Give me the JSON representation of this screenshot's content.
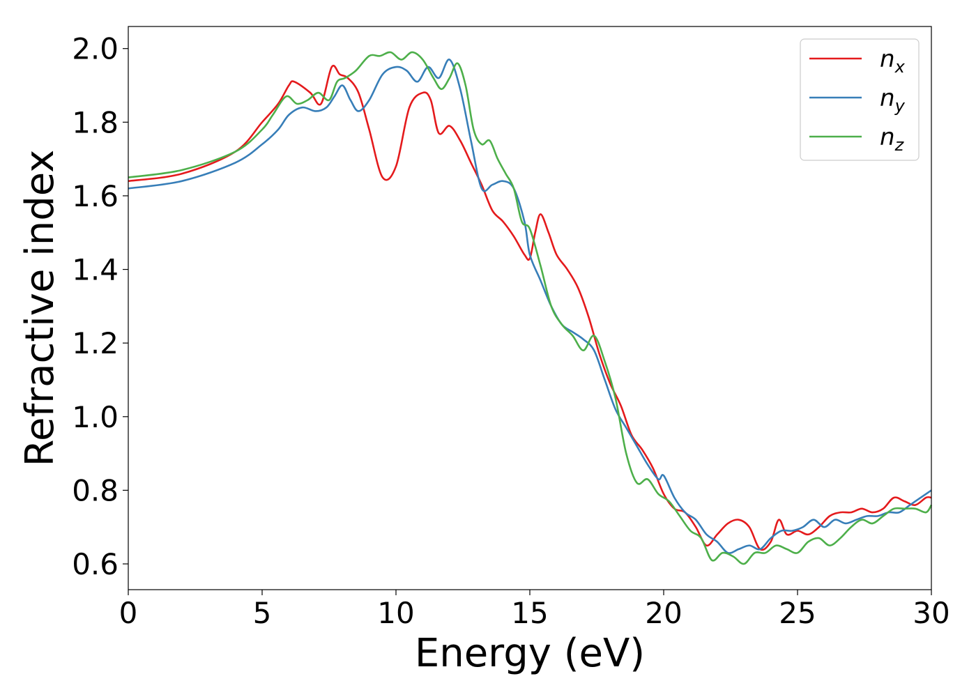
{
  "chart_data": {
    "type": "line",
    "title": "",
    "xlabel": "Energy (eV)",
    "ylabel": "Refractive index",
    "xlim": [
      0,
      30
    ],
    "ylim": [
      0.53,
      2.06
    ],
    "xticks": [
      0,
      5,
      10,
      15,
      20,
      25,
      30
    ],
    "yticks": [
      0.6,
      0.8,
      1.0,
      1.2,
      1.4,
      1.6,
      1.8,
      2.0
    ],
    "xtick_labels": [
      "0",
      "5",
      "10",
      "15",
      "20",
      "25",
      "30"
    ],
    "ytick_labels": [
      "0.6",
      "0.8",
      "1.0",
      "1.2",
      "1.4",
      "1.6",
      "1.8",
      "2.0"
    ],
    "grid": false,
    "legend_position": "top-right",
    "series": [
      {
        "name": "n_x",
        "base": "n",
        "sub": "x",
        "color": "#e41a1c",
        "x": [
          0,
          2,
          4,
          5,
          5.6,
          6,
          6.2,
          6.8,
          7.2,
          7.6,
          7.9,
          8.2,
          8.6,
          9,
          9.5,
          10,
          10.5,
          11,
          11.3,
          11.6,
          12,
          12.4,
          12.8,
          13.2,
          13.6,
          14,
          14.4,
          14.8,
          15,
          15.2,
          15.4,
          15.7,
          16,
          16.4,
          16.8,
          17.2,
          17.6,
          18,
          18.4,
          18.8,
          19.2,
          19.6,
          20,
          20.4,
          20.8,
          21.2,
          21.6,
          22,
          22.4,
          22.8,
          23.2,
          23.6,
          24,
          24.3,
          24.6,
          25,
          25.4,
          25.8,
          26.2,
          26.6,
          27,
          27.4,
          27.8,
          28.2,
          28.6,
          29,
          29.4,
          29.8,
          30
        ],
        "y": [
          1.64,
          1.66,
          1.72,
          1.8,
          1.85,
          1.9,
          1.91,
          1.88,
          1.85,
          1.95,
          1.93,
          1.92,
          1.88,
          1.78,
          1.65,
          1.68,
          1.84,
          1.88,
          1.86,
          1.77,
          1.79,
          1.75,
          1.69,
          1.63,
          1.56,
          1.53,
          1.49,
          1.44,
          1.43,
          1.5,
          1.55,
          1.5,
          1.44,
          1.4,
          1.35,
          1.27,
          1.17,
          1.09,
          1.03,
          0.95,
          0.91,
          0.86,
          0.79,
          0.75,
          0.74,
          0.7,
          0.65,
          0.68,
          0.71,
          0.72,
          0.7,
          0.64,
          0.66,
          0.72,
          0.68,
          0.69,
          0.68,
          0.7,
          0.73,
          0.74,
          0.74,
          0.75,
          0.74,
          0.75,
          0.78,
          0.77,
          0.76,
          0.78,
          0.78
        ]
      },
      {
        "name": "n_y",
        "base": "n",
        "sub": "y",
        "color": "#377eb8",
        "x": [
          0,
          2,
          4,
          5,
          5.6,
          6,
          6.5,
          7,
          7.4,
          7.7,
          8,
          8.3,
          8.6,
          9,
          9.5,
          10,
          10.4,
          10.8,
          11.2,
          11.6,
          12,
          12.4,
          12.8,
          13.2,
          13.6,
          14,
          14.4,
          14.8,
          15,
          15.4,
          15.8,
          16.2,
          16.6,
          17,
          17.4,
          17.8,
          18.2,
          18.6,
          19,
          19.4,
          19.8,
          20,
          20.4,
          20.8,
          21.2,
          21.6,
          22,
          22.4,
          22.8,
          23.2,
          23.6,
          24,
          24.4,
          24.8,
          25.2,
          25.6,
          26,
          26.4,
          26.8,
          27.2,
          27.6,
          28,
          28.4,
          28.8,
          29.2,
          29.6,
          30
        ],
        "y": [
          1.62,
          1.64,
          1.69,
          1.74,
          1.78,
          1.82,
          1.84,
          1.83,
          1.84,
          1.87,
          1.9,
          1.86,
          1.83,
          1.86,
          1.93,
          1.95,
          1.94,
          1.91,
          1.95,
          1.92,
          1.97,
          1.89,
          1.75,
          1.62,
          1.63,
          1.64,
          1.62,
          1.53,
          1.44,
          1.37,
          1.3,
          1.25,
          1.23,
          1.21,
          1.18,
          1.1,
          1.02,
          0.97,
          0.92,
          0.87,
          0.83,
          0.84,
          0.78,
          0.74,
          0.72,
          0.68,
          0.66,
          0.63,
          0.64,
          0.65,
          0.64,
          0.67,
          0.69,
          0.69,
          0.7,
          0.72,
          0.7,
          0.72,
          0.71,
          0.72,
          0.73,
          0.73,
          0.74,
          0.74,
          0.76,
          0.78,
          0.8
        ]
      },
      {
        "name": "n_z",
        "base": "n",
        "sub": "z",
        "color": "#4daf4a",
        "x": [
          0,
          2,
          4,
          5,
          5.4,
          5.9,
          6.3,
          6.7,
          7.1,
          7.5,
          7.8,
          8.1,
          8.5,
          9,
          9.4,
          9.8,
          10.2,
          10.6,
          11,
          11.4,
          11.7,
          12,
          12.3,
          12.6,
          12.9,
          13.2,
          13.5,
          13.8,
          14.1,
          14.4,
          14.7,
          15,
          15.4,
          15.8,
          16.2,
          16.6,
          17,
          17.4,
          17.8,
          18.2,
          18.6,
          19,
          19.4,
          19.8,
          20.2,
          20.6,
          21,
          21.4,
          21.8,
          22.2,
          22.6,
          23,
          23.4,
          23.8,
          24.2,
          24.6,
          25,
          25.4,
          25.8,
          26.2,
          26.6,
          27,
          27.4,
          27.8,
          28.2,
          28.6,
          29,
          29.4,
          29.8,
          30
        ],
        "y": [
          1.65,
          1.67,
          1.72,
          1.78,
          1.82,
          1.87,
          1.85,
          1.86,
          1.88,
          1.86,
          1.91,
          1.92,
          1.94,
          1.98,
          1.98,
          1.99,
          1.97,
          1.99,
          1.97,
          1.92,
          1.89,
          1.92,
          1.96,
          1.9,
          1.78,
          1.74,
          1.75,
          1.7,
          1.66,
          1.62,
          1.53,
          1.51,
          1.41,
          1.3,
          1.25,
          1.22,
          1.18,
          1.22,
          1.15,
          1.05,
          0.9,
          0.82,
          0.83,
          0.79,
          0.77,
          0.73,
          0.69,
          0.67,
          0.61,
          0.63,
          0.62,
          0.6,
          0.63,
          0.63,
          0.65,
          0.64,
          0.63,
          0.66,
          0.67,
          0.65,
          0.67,
          0.7,
          0.72,
          0.71,
          0.73,
          0.75,
          0.75,
          0.75,
          0.74,
          0.76
        ]
      }
    ]
  }
}
